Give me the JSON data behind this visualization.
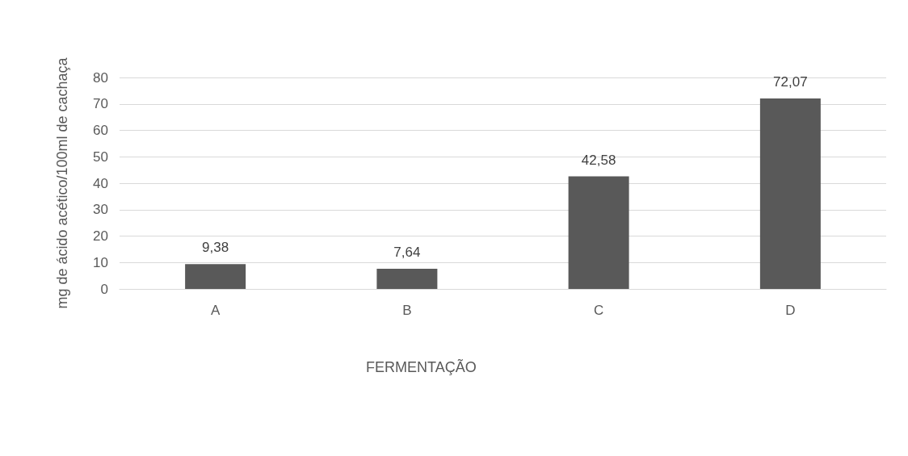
{
  "chart_data": {
    "type": "bar",
    "xlabel": "FERMENTAÇÃO",
    "ylabel": "mg de ácido acético/100ml de cachaça",
    "categories": [
      "A",
      "B",
      "C",
      "D"
    ],
    "values": [
      9.38,
      7.64,
      42.58,
      72.07
    ],
    "value_labels": [
      "9,38",
      "7,64",
      "42,58",
      "72,07"
    ],
    "color": "#595959",
    "ylim": [
      0,
      80
    ],
    "yticks": [
      0,
      10,
      20,
      30,
      40,
      50,
      60,
      70,
      80
    ],
    "grid": "y"
  }
}
